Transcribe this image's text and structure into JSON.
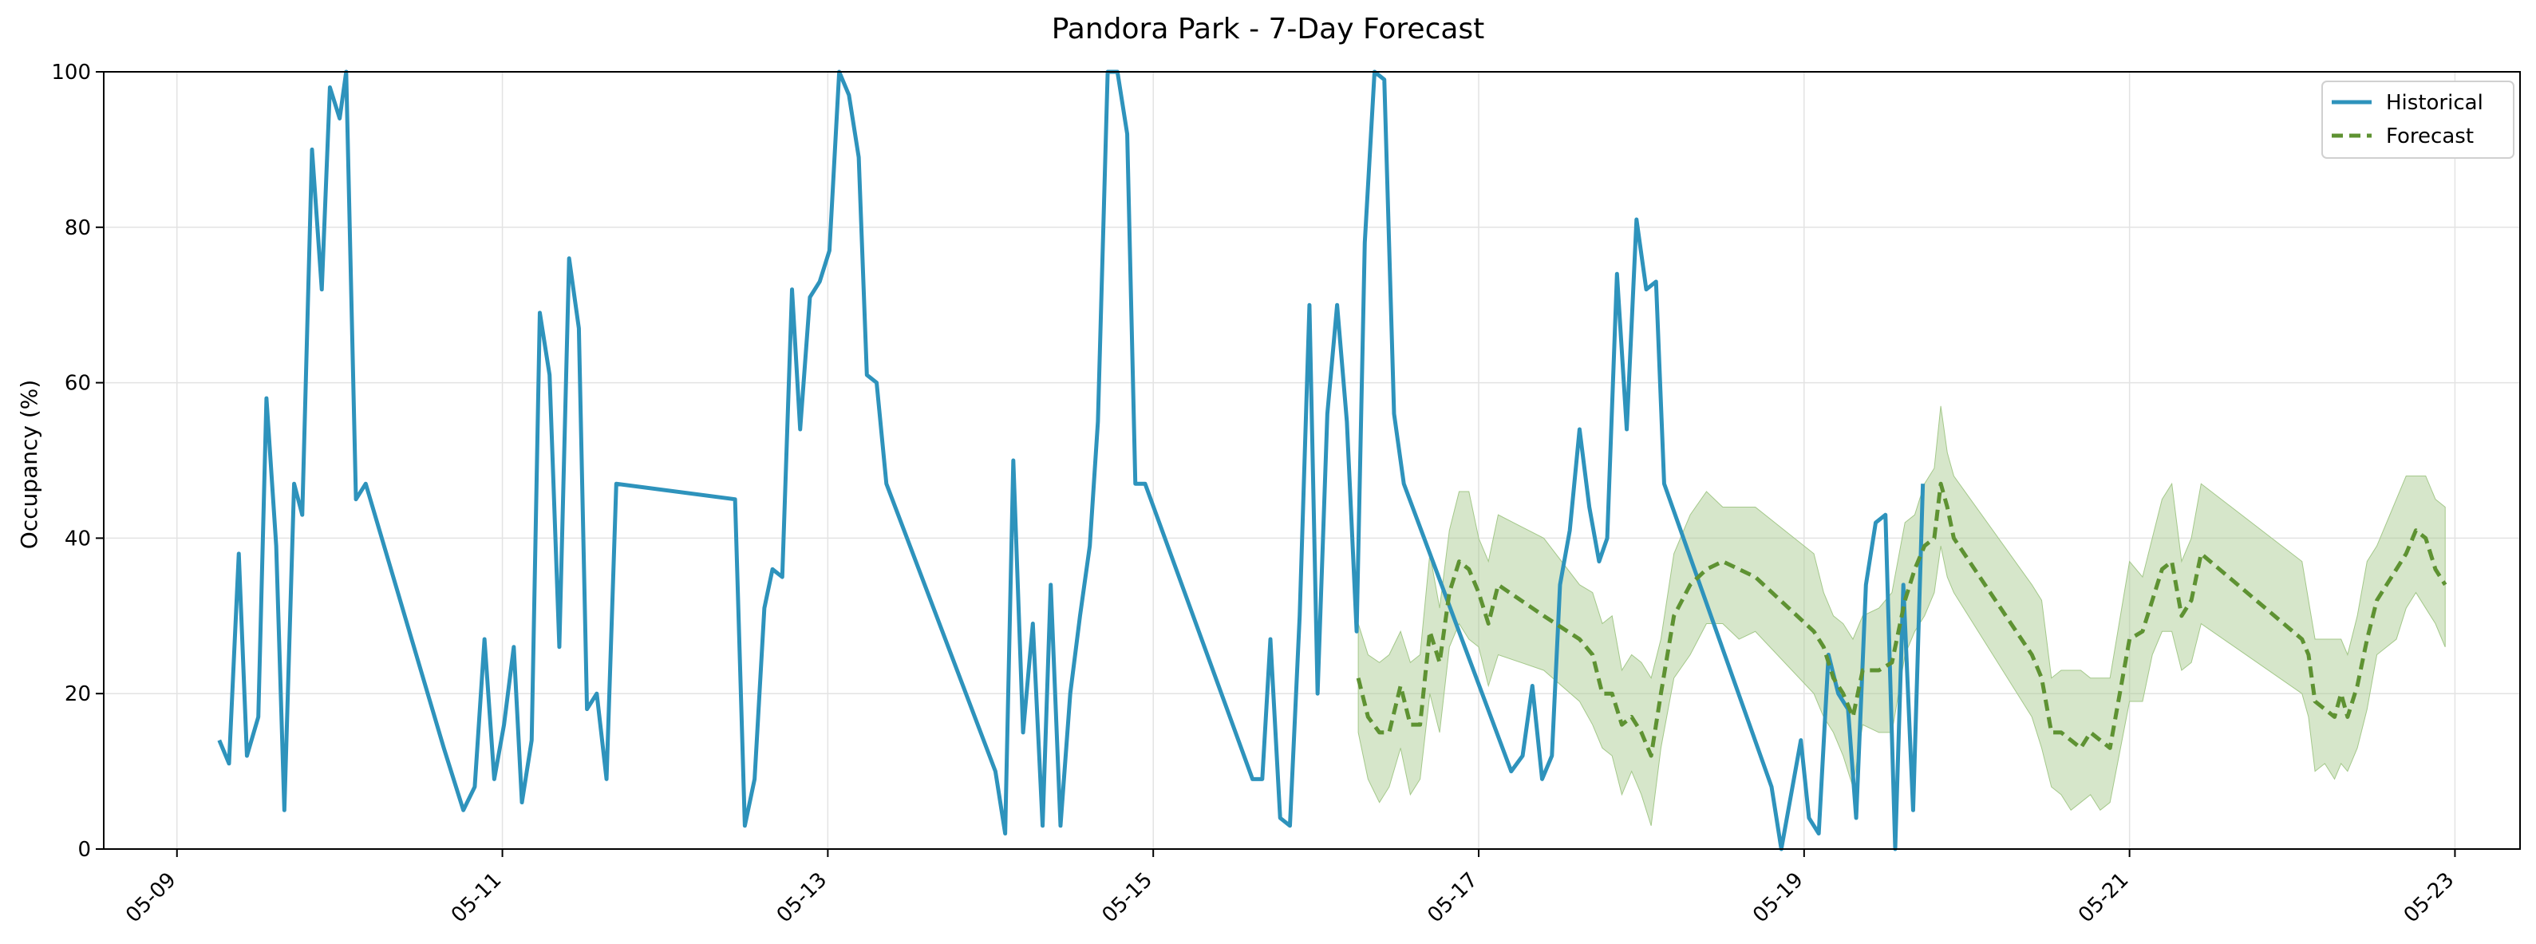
{
  "chart_data": {
    "type": "line",
    "title": "Pandora Park - 7-Day Forecast",
    "xlabel": "",
    "ylabel": "Occupancy (%)",
    "x_unit": "date (May, fractional day)",
    "xlim": [
      "05-08 T 13:00",
      "05-23 T 10:00"
    ],
    "ylim": [
      0,
      100
    ],
    "x_ticks": [
      "05-09",
      "05-11",
      "05-13",
      "05-15",
      "05-17",
      "05-19",
      "05-21",
      "05-23"
    ],
    "y_ticks": [
      "0",
      "20",
      "40",
      "60",
      "80",
      "100"
    ],
    "grid": true,
    "legend_position": "top-right",
    "colors": {
      "historical": "#2E93BC",
      "forecast": "#5E9232",
      "band": "#A4C88A"
    },
    "series": [
      {
        "name": "Historical",
        "style": "solid",
        "points": [
          [
            "05-09",
            9.26,
            14
          ],
          [
            "05-09",
            9.32,
            11
          ],
          [
            "05-09",
            9.38,
            38
          ],
          [
            "05-09",
            9.43,
            12
          ],
          [
            "05-09",
            9.5,
            17
          ],
          [
            "05-09",
            9.55,
            58
          ],
          [
            "05-09",
            9.61,
            39
          ],
          [
            "05-09",
            9.66,
            5
          ],
          [
            "05-09",
            9.72,
            47
          ],
          [
            "05-09",
            9.77,
            43
          ],
          [
            "05-09",
            9.83,
            90
          ],
          [
            "05-09",
            9.89,
            72
          ],
          [
            "05-09",
            9.94,
            98
          ],
          [
            "05-10",
            10.0,
            94
          ],
          [
            "05-10",
            10.04,
            100
          ],
          [
            "05-10",
            10.1,
            45
          ],
          [
            "05-10",
            10.16,
            47
          ],
          [
            "05-10",
            10.64,
            13
          ],
          [
            "05-10",
            10.76,
            5
          ],
          [
            "05-10",
            10.83,
            8
          ],
          [
            "05-10",
            10.89,
            27
          ],
          [
            "05-10",
            10.95,
            9
          ],
          [
            "05-11",
            11.01,
            16
          ],
          [
            "05-11",
            11.07,
            26
          ],
          [
            "05-11",
            11.12,
            6
          ],
          [
            "05-11",
            11.18,
            14
          ],
          [
            "05-11",
            11.23,
            69
          ],
          [
            "05-11",
            11.29,
            61
          ],
          [
            "05-11",
            11.35,
            26
          ],
          [
            "05-11",
            11.41,
            76
          ],
          [
            "05-11",
            11.47,
            67
          ],
          [
            "05-11",
            11.52,
            18
          ],
          [
            "05-11",
            11.58,
            20
          ],
          [
            "05-11",
            11.64,
            9
          ],
          [
            "05-11",
            11.7,
            47
          ],
          [
            "05-12",
            12.43,
            45
          ],
          [
            "05-12",
            12.49,
            3
          ],
          [
            "05-12",
            12.55,
            9
          ],
          [
            "05-12",
            12.61,
            31
          ],
          [
            "05-12",
            12.66,
            36
          ],
          [
            "05-12",
            12.72,
            35
          ],
          [
            "05-12",
            12.78,
            72
          ],
          [
            "05-12",
            12.83,
            54
          ],
          [
            "05-12",
            12.89,
            71
          ],
          [
            "05-12",
            12.95,
            73
          ],
          [
            "05-13",
            13.01,
            77
          ],
          [
            "05-13",
            13.07,
            100
          ],
          [
            "05-13",
            13.13,
            97
          ],
          [
            "05-13",
            13.19,
            89
          ],
          [
            "05-13",
            13.24,
            61
          ],
          [
            "05-13",
            13.3,
            60
          ],
          [
            "05-13",
            13.36,
            47
          ],
          [
            "05-13",
            14.03,
            10
          ],
          [
            "05-14",
            14.09,
            2
          ],
          [
            "05-14",
            14.14,
            50
          ],
          [
            "05-14",
            14.2,
            15
          ],
          [
            "05-14",
            14.26,
            29
          ],
          [
            "05-14",
            14.32,
            3
          ],
          [
            "05-14",
            14.37,
            34
          ],
          [
            "05-14",
            14.43,
            3
          ],
          [
            "05-14",
            14.49,
            20
          ],
          [
            "05-14",
            14.55,
            30
          ],
          [
            "05-14",
            14.61,
            39
          ],
          [
            "05-14",
            14.66,
            55
          ],
          [
            "05-14",
            14.72,
            100
          ],
          [
            "05-14",
            14.78,
            100
          ],
          [
            "05-14",
            14.84,
            92
          ],
          [
            "05-14",
            14.89,
            47
          ],
          [
            "05-14",
            14.95,
            47
          ],
          [
            "05-15",
            15.61,
            9
          ],
          [
            "05-15",
            15.67,
            9
          ],
          [
            "05-15",
            15.72,
            27
          ],
          [
            "05-15",
            15.78,
            4
          ],
          [
            "05-15",
            15.84,
            3
          ],
          [
            "05-15",
            15.9,
            30
          ],
          [
            "05-15",
            15.96,
            70
          ],
          [
            "05-16",
            16.01,
            20
          ],
          [
            "05-16",
            16.07,
            56
          ],
          [
            "05-16",
            16.13,
            70
          ],
          [
            "05-16",
            16.19,
            55
          ],
          [
            "05-16",
            16.25,
            28
          ],
          [
            "05-16",
            16.3,
            78
          ],
          [
            "05-16",
            16.36,
            100
          ],
          [
            "05-16",
            16.42,
            99
          ],
          [
            "05-16",
            16.48,
            56
          ],
          [
            "05-16",
            16.54,
            47
          ],
          [
            "05-17",
            17.2,
            10
          ],
          [
            "05-17",
            17.27,
            12
          ],
          [
            "05-17",
            17.33,
            21
          ],
          [
            "05-17",
            17.39,
            9
          ],
          [
            "05-17",
            17.45,
            12
          ],
          [
            "05-17",
            17.5,
            34
          ],
          [
            "05-17",
            17.56,
            41
          ],
          [
            "05-17",
            17.62,
            54
          ],
          [
            "05-17",
            17.68,
            44
          ],
          [
            "05-17",
            17.74,
            37
          ],
          [
            "05-17",
            17.79,
            40
          ],
          [
            "05-17",
            17.85,
            74
          ],
          [
            "05-17",
            17.91,
            54
          ],
          [
            "05-17",
            17.97,
            81
          ],
          [
            "05-18",
            18.03,
            72
          ],
          [
            "05-18",
            18.09,
            73
          ],
          [
            "05-18",
            18.14,
            47
          ],
          [
            "05-18",
            18.8,
            8
          ],
          [
            "05-18",
            18.86,
            0
          ],
          [
            "05-18",
            18.92,
            7
          ],
          [
            "05-18",
            18.98,
            14
          ],
          [
            "05-19",
            19.03,
            4
          ],
          [
            "05-19",
            19.09,
            2
          ],
          [
            "05-19",
            19.15,
            25
          ],
          [
            "05-19",
            19.21,
            20
          ],
          [
            "05-19",
            19.27,
            18
          ],
          [
            "05-19",
            19.32,
            4
          ],
          [
            "05-19",
            19.38,
            34
          ],
          [
            "05-19",
            19.44,
            42
          ],
          [
            "05-19",
            19.5,
            43
          ],
          [
            "05-19",
            19.56,
            0
          ],
          [
            "05-19",
            19.61,
            34
          ],
          [
            "05-19",
            19.67,
            5
          ],
          [
            "05-19",
            19.73,
            47
          ]
        ]
      },
      {
        "name": "Forecast",
        "style": "dashed",
        "points": [
          [
            "05-16",
            16.26,
            22
          ],
          [
            "05-16",
            16.32,
            17
          ],
          [
            "05-16",
            16.39,
            15
          ],
          [
            "05-16",
            16.45,
            15
          ],
          [
            "05-16",
            16.52,
            21
          ],
          [
            "05-16",
            16.58,
            16
          ],
          [
            "05-16",
            16.64,
            16
          ],
          [
            "05-16",
            16.7,
            28
          ],
          [
            "05-16",
            16.76,
            24
          ],
          [
            "05-16",
            16.82,
            33
          ],
          [
            "05-16",
            16.88,
            37
          ],
          [
            "05-16",
            16.94,
            36
          ],
          [
            "05-17",
            17.0,
            33
          ],
          [
            "05-17",
            17.06,
            29
          ],
          [
            "05-17",
            17.12,
            34
          ],
          [
            "05-17",
            17.4,
            30
          ],
          [
            "05-17",
            17.62,
            27
          ],
          [
            "05-17",
            17.7,
            25
          ],
          [
            "05-17",
            17.76,
            20
          ],
          [
            "05-17",
            17.82,
            20
          ],
          [
            "05-17",
            17.88,
            16
          ],
          [
            "05-17",
            17.94,
            17
          ],
          [
            "05-18",
            18.0,
            15
          ],
          [
            "05-18",
            18.06,
            12
          ],
          [
            "05-18",
            18.12,
            20
          ],
          [
            "05-18",
            18.2,
            30
          ],
          [
            "05-18",
            18.3,
            34
          ],
          [
            "05-18",
            18.4,
            36
          ],
          [
            "05-18",
            18.5,
            37
          ],
          [
            "05-18",
            18.6,
            36
          ],
          [
            "05-18",
            18.7,
            35
          ],
          [
            "05-19",
            19.06,
            28
          ],
          [
            "05-19",
            19.12,
            26
          ],
          [
            "05-19",
            19.18,
            22
          ],
          [
            "05-19",
            19.24,
            20
          ],
          [
            "05-19",
            19.3,
            17
          ],
          [
            "05-19",
            19.36,
            23
          ],
          [
            "05-19",
            19.46,
            23
          ],
          [
            "05-19",
            19.54,
            24
          ],
          [
            "05-19",
            19.62,
            32
          ],
          [
            "05-19",
            19.68,
            36
          ],
          [
            "05-19",
            19.74,
            39
          ],
          [
            "05-19",
            19.8,
            40
          ],
          [
            "05-19",
            19.84,
            47
          ],
          [
            "05-19",
            19.88,
            44
          ],
          [
            "05-19",
            19.92,
            40
          ],
          [
            "05-20",
            20.4,
            25
          ],
          [
            "05-20",
            20.46,
            22
          ],
          [
            "05-20",
            20.52,
            15
          ],
          [
            "05-20",
            20.58,
            15
          ],
          [
            "05-20",
            20.64,
            14
          ],
          [
            "05-20",
            20.7,
            13
          ],
          [
            "05-20",
            20.76,
            15
          ],
          [
            "05-20",
            20.82,
            14
          ],
          [
            "05-20",
            20.88,
            13
          ],
          [
            "05-21",
            21.0,
            27
          ],
          [
            "05-21",
            21.08,
            28
          ],
          [
            "05-21",
            21.14,
            32
          ],
          [
            "05-21",
            21.2,
            36
          ],
          [
            "05-21",
            21.26,
            37
          ],
          [
            "05-21",
            21.32,
            30
          ],
          [
            "05-21",
            21.38,
            32
          ],
          [
            "05-21",
            21.44,
            38
          ],
          [
            "05-21",
            22.06,
            27
          ],
          [
            "05-22",
            22.1,
            25
          ],
          [
            "05-22",
            22.14,
            19
          ],
          [
            "05-22",
            22.2,
            18
          ],
          [
            "05-22",
            22.26,
            17
          ],
          [
            "05-22",
            22.3,
            20
          ],
          [
            "05-22",
            22.34,
            17
          ],
          [
            "05-22",
            22.4,
            21
          ],
          [
            "05-22",
            22.46,
            27
          ],
          [
            "05-22",
            22.52,
            32
          ],
          [
            "05-22",
            22.58,
            34
          ],
          [
            "05-22",
            22.64,
            36
          ],
          [
            "05-22",
            22.7,
            38
          ],
          [
            "05-22",
            22.76,
            41
          ],
          [
            "05-22",
            22.82,
            40
          ],
          [
            "05-22",
            22.88,
            36
          ],
          [
            "05-22",
            22.94,
            34
          ]
        ]
      }
    ]
  },
  "legend": {
    "historical_label": "Historical",
    "forecast_label": "Forecast"
  }
}
